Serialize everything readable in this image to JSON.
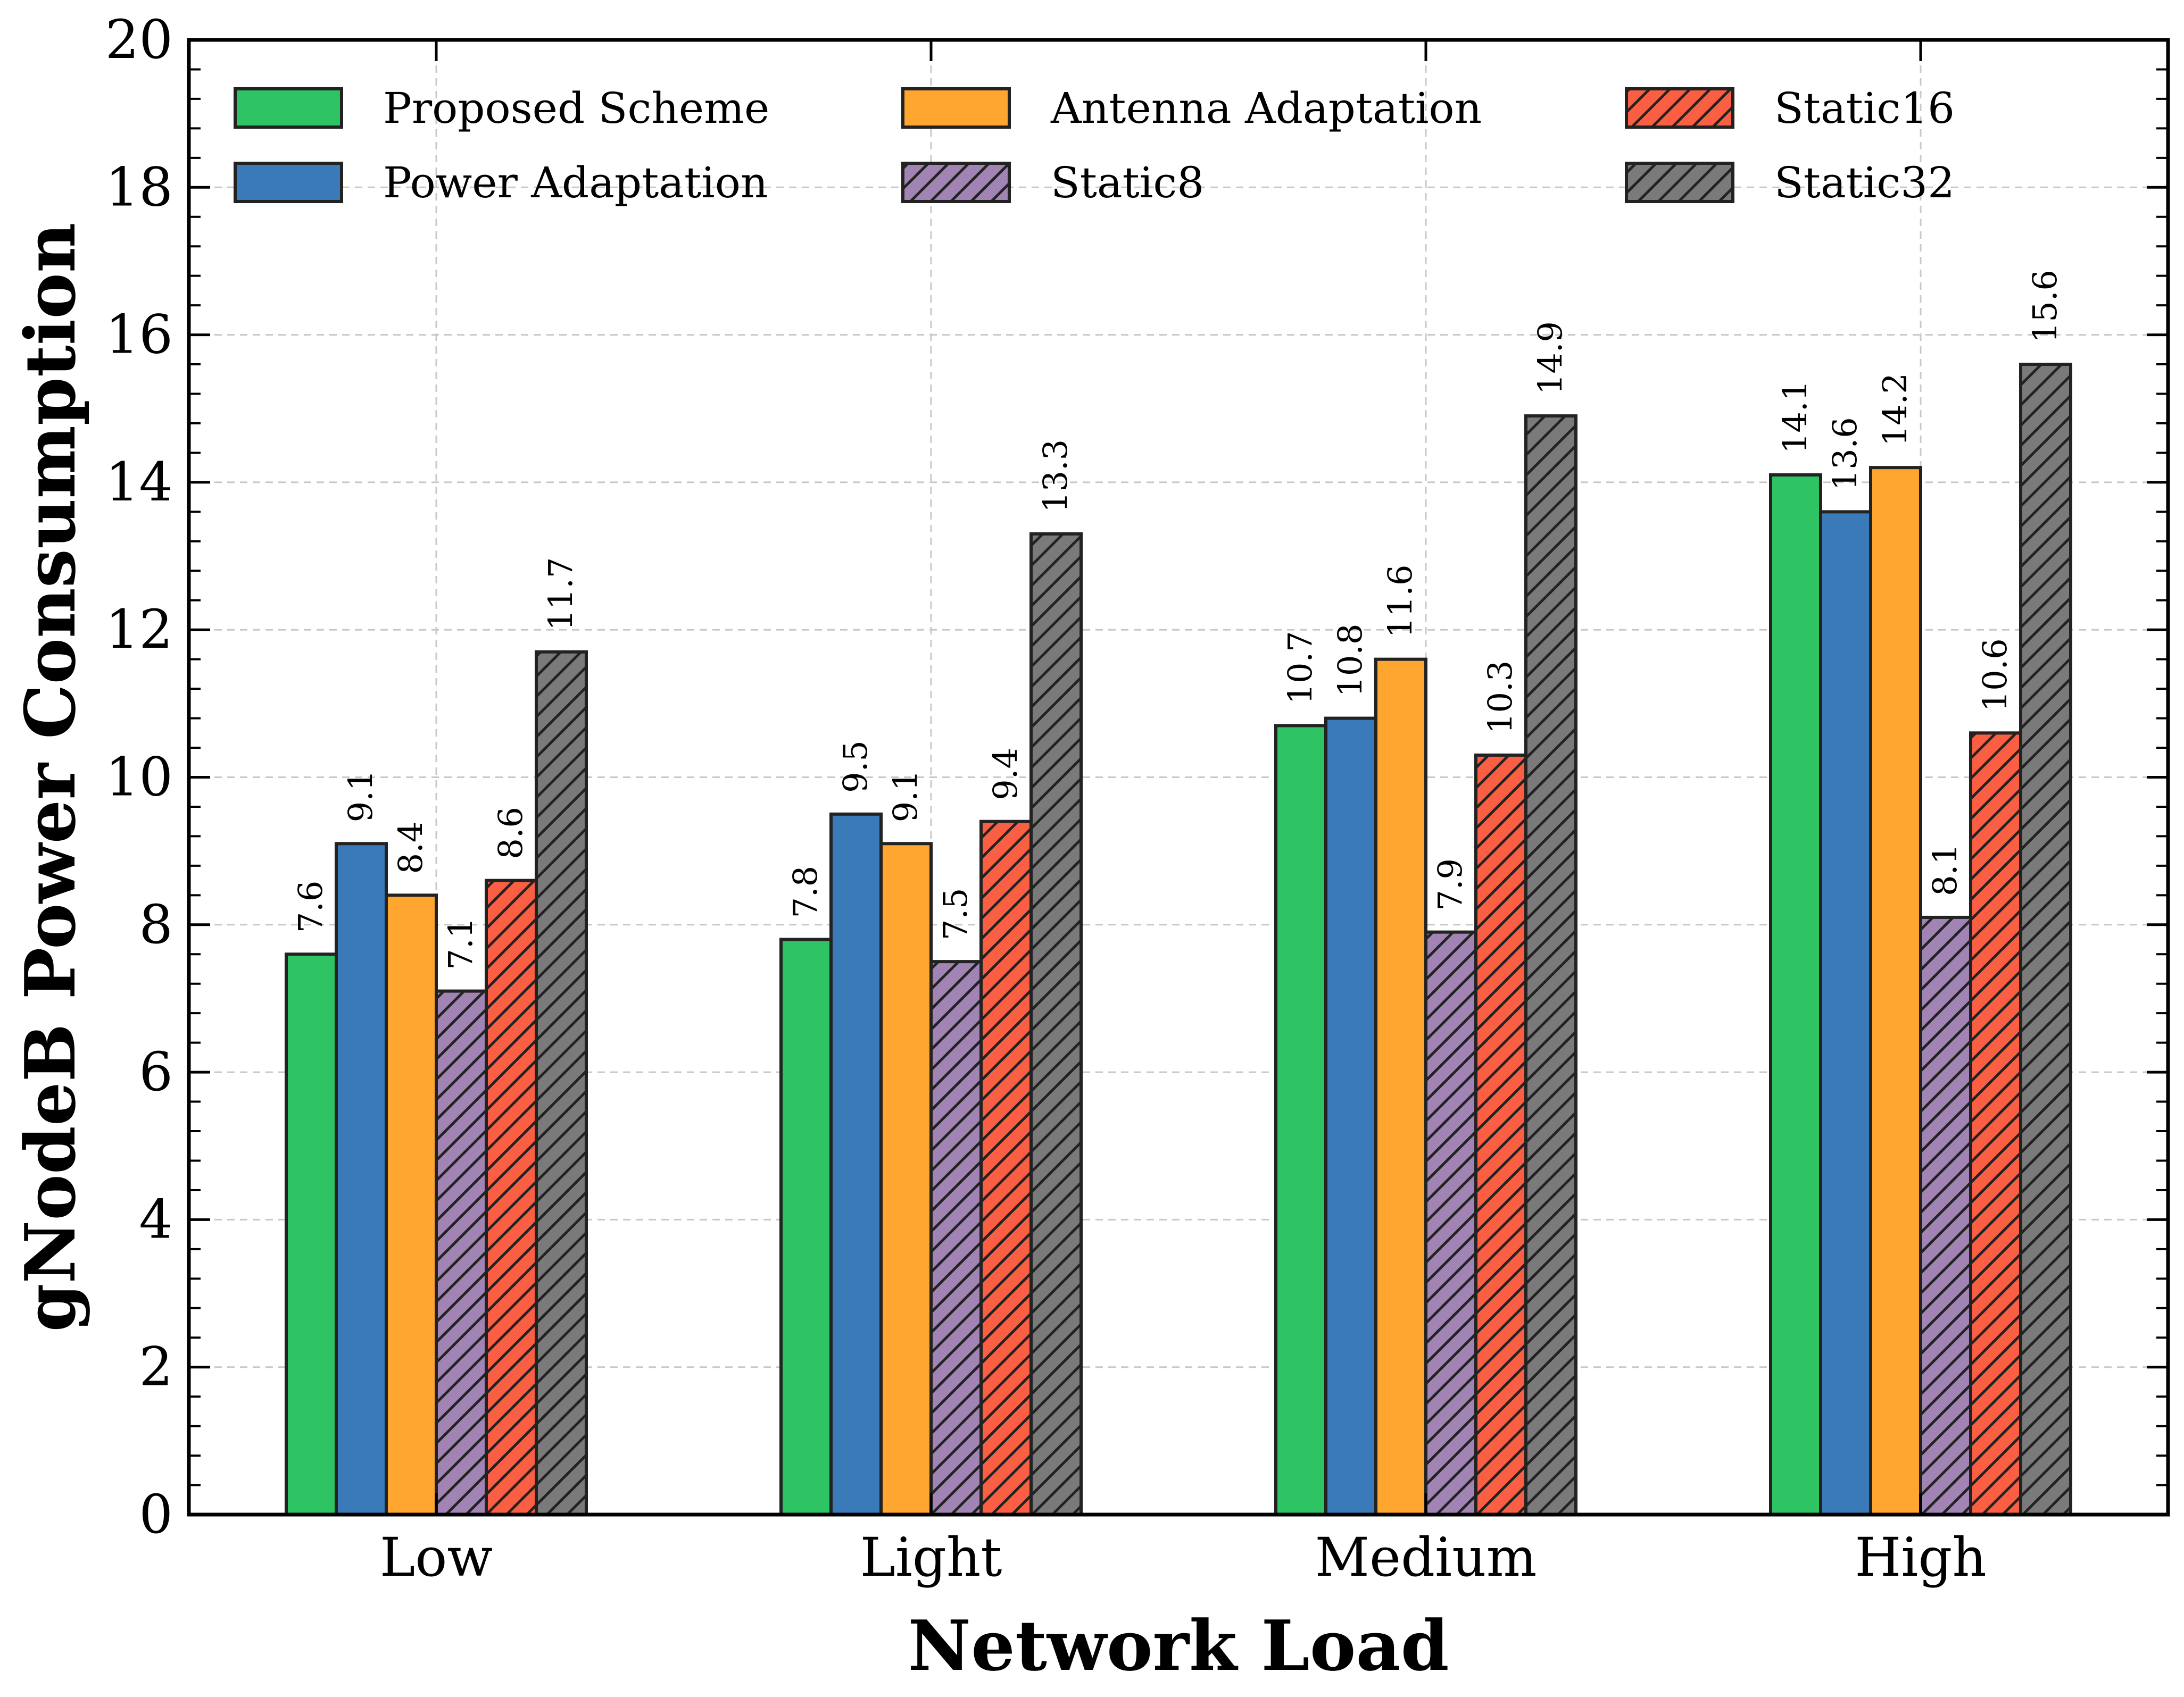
{
  "chart_data": {
    "type": "bar",
    "title": "",
    "xlabel": "Network Load",
    "ylabel": "gNodeB Power Consumption",
    "ylim": [
      0,
      20
    ],
    "yticks": [
      0,
      2,
      4,
      6,
      8,
      10,
      12,
      14,
      16,
      18,
      20
    ],
    "categories": [
      "Low",
      "Light",
      "Medium",
      "High"
    ],
    "grid": true,
    "legend_position": "top",
    "series": [
      {
        "name": "Proposed Scheme",
        "values": [
          7.6,
          7.8,
          10.7,
          14.1
        ],
        "color": "#2ec464",
        "hatch": false
      },
      {
        "name": "Power Adaptation",
        "values": [
          9.1,
          9.5,
          10.8,
          13.6
        ],
        "color": "#3a7ab8",
        "hatch": false
      },
      {
        "name": "Antenna Adaptation",
        "values": [
          8.4,
          9.1,
          11.6,
          14.2
        ],
        "color": "#ffa630",
        "hatch": false
      },
      {
        "name": "Static8",
        "values": [
          7.1,
          7.5,
          7.9,
          8.1
        ],
        "color": "#a284b4",
        "hatch": true
      },
      {
        "name": "Static16",
        "values": [
          8.6,
          9.4,
          10.3,
          10.6
        ],
        "color": "#fb5f43",
        "hatch": true
      },
      {
        "name": "Static32",
        "values": [
          11.7,
          13.3,
          14.9,
          15.6
        ],
        "color": "#7a7a7a",
        "hatch": true
      }
    ]
  }
}
